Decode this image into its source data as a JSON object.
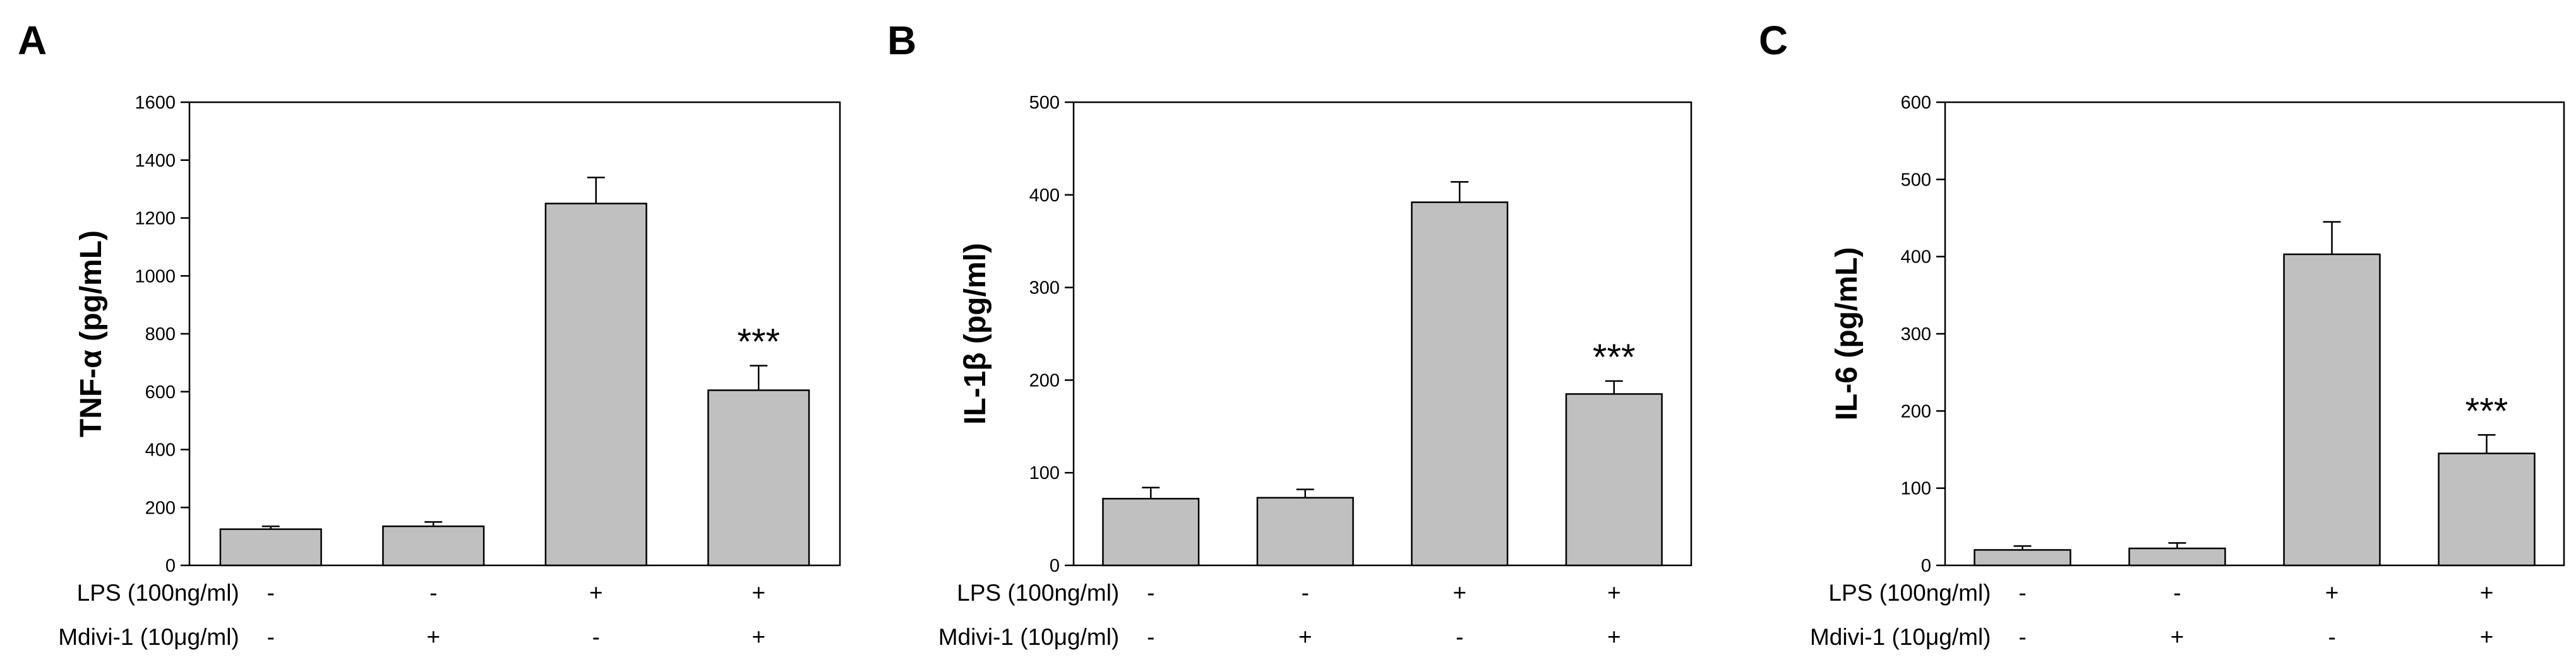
{
  "chart_data": [
    {
      "type": "bar",
      "panel": "A",
      "ylabel": "TNF-α (pg/mL)",
      "ylim": [
        0,
        1600
      ],
      "yticks": [
        "0",
        "200",
        "400",
        "600",
        "800",
        "1000",
        "1200",
        "1400",
        "1600"
      ],
      "categories": [
        "1",
        "2",
        "3",
        "4"
      ],
      "values": [
        125,
        135,
        1250,
        605
      ],
      "errors": [
        10,
        15,
        90,
        85
      ],
      "significance": [
        "",
        "",
        "",
        "***"
      ],
      "bar_color": "#c0c0c0",
      "grid": false
    },
    {
      "type": "bar",
      "panel": "B",
      "ylabel": "IL-1β (pg/ml)",
      "ylim": [
        0,
        500
      ],
      "yticks": [
        "0",
        "100",
        "200",
        "300",
        "400",
        "500"
      ],
      "categories": [
        "1",
        "2",
        "3",
        "4"
      ],
      "values": [
        72,
        73,
        392,
        185
      ],
      "errors": [
        12,
        9,
        22,
        14
      ],
      "significance": [
        "",
        "",
        "",
        "***"
      ],
      "bar_color": "#c0c0c0",
      "grid": false
    },
    {
      "type": "bar",
      "panel": "C",
      "ylabel": "IL-6 (pg/mL)",
      "ylim": [
        0,
        600
      ],
      "yticks": [
        "0",
        "100",
        "200",
        "300",
        "400",
        "500",
        "600"
      ],
      "categories": [
        "1",
        "2",
        "3",
        "4"
      ],
      "values": [
        20,
        22,
        403,
        145
      ],
      "errors": [
        5,
        7,
        42,
        24
      ],
      "significance": [
        "",
        "",
        "",
        "***"
      ],
      "bar_color": "#c0c0c0",
      "grid": false
    }
  ],
  "treatments": {
    "lps_label": "LPS (100ng/ml)",
    "mdivi_label": "Mdivi-1 (10μg/ml)",
    "lps_signs": [
      "-",
      "-",
      "+",
      "+"
    ],
    "mdivi_signs": [
      "-",
      "+",
      "-",
      "+"
    ]
  }
}
